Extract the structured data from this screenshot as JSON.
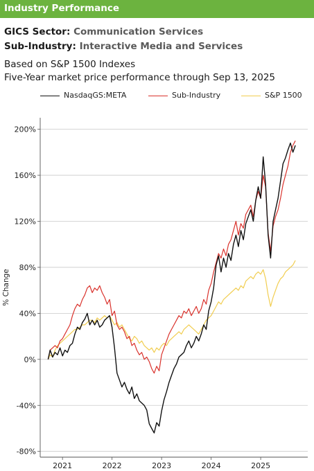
{
  "header": {
    "title": "Industry Performance"
  },
  "sector": {
    "label": "GICS Sector:",
    "value": "Communication Services"
  },
  "sub_industry": {
    "label": "Sub-Industry:",
    "value": "Interactive Media and Services"
  },
  "based_on": "Based on S&P 1500 Indexes",
  "subtitle": "Five-Year market price performance through Sep 13, 2025",
  "colors": {
    "header_bg": "#6cb33f",
    "meta": "#111111",
    "sub_industry": "#d9312b",
    "sp1500": "#f1cd4f"
  },
  "chart_data": {
    "type": "line",
    "ylabel": "% Change",
    "yticks": [
      "200%",
      "160%",
      "120%",
      "80%",
      "40%",
      "0%",
      "-40%",
      "-80%"
    ],
    "ytick_values": [
      200,
      160,
      120,
      80,
      40,
      0,
      -40,
      -80
    ],
    "xticks": [
      "2021",
      "2022",
      "2023",
      "2024",
      "2025"
    ],
    "xtick_values": [
      2021,
      2022,
      2023,
      2024,
      2025
    ],
    "ylim": [
      -85,
      210
    ],
    "xlim": [
      2020.55,
      2025.95
    ],
    "grid": true,
    "legend_position": "top",
    "series": [
      {
        "name": "NasdaqGS:META",
        "color": "#111111",
        "x": [
          2020.71,
          2020.75,
          2020.8,
          2020.85,
          2020.9,
          2020.95,
          2021.0,
          2021.05,
          2021.1,
          2021.15,
          2021.2,
          2021.25,
          2021.3,
          2021.35,
          2021.4,
          2021.45,
          2021.5,
          2021.55,
          2021.6,
          2021.65,
          2021.7,
          2021.75,
          2021.8,
          2021.85,
          2021.9,
          2021.95,
          2022.0,
          2022.05,
          2022.1,
          2022.15,
          2022.2,
          2022.25,
          2022.3,
          2022.35,
          2022.4,
          2022.45,
          2022.5,
          2022.55,
          2022.6,
          2022.65,
          2022.7,
          2022.75,
          2022.8,
          2022.85,
          2022.9,
          2022.95,
          2023.0,
          2023.05,
          2023.1,
          2023.15,
          2023.2,
          2023.25,
          2023.3,
          2023.35,
          2023.4,
          2023.45,
          2023.5,
          2023.55,
          2023.6,
          2023.65,
          2023.7,
          2023.75,
          2023.8,
          2023.85,
          2023.9,
          2023.95,
          2024.0,
          2024.05,
          2024.1,
          2024.15,
          2024.2,
          2024.25,
          2024.3,
          2024.35,
          2024.4,
          2024.45,
          2024.5,
          2024.55,
          2024.6,
          2024.65,
          2024.7,
          2024.75,
          2024.8,
          2024.85,
          2024.9,
          2024.95,
          2025.0,
          2025.05,
          2025.1,
          2025.15,
          2025.2,
          2025.25,
          2025.3,
          2025.35,
          2025.4,
          2025.45,
          2025.5,
          2025.55,
          2025.6,
          2025.65,
          2025.7
        ],
        "values": [
          0,
          8,
          2,
          6,
          4,
          10,
          3,
          8,
          6,
          12,
          14,
          22,
          28,
          26,
          32,
          35,
          40,
          30,
          34,
          30,
          34,
          28,
          30,
          34,
          36,
          38,
          28,
          10,
          -12,
          -18,
          -24,
          -20,
          -26,
          -30,
          -24,
          -34,
          -30,
          -36,
          -38,
          -40,
          -44,
          -56,
          -60,
          -64,
          -55,
          -58,
          -45,
          -35,
          -28,
          -20,
          -14,
          -8,
          -4,
          2,
          4,
          6,
          12,
          16,
          10,
          14,
          20,
          16,
          22,
          30,
          26,
          42,
          50,
          62,
          82,
          90,
          76,
          88,
          80,
          92,
          86,
          100,
          108,
          98,
          112,
          104,
          118,
          124,
          130,
          120,
          138,
          150,
          140,
          176,
          152,
          108,
          88,
          120,
          130,
          140,
          155,
          170,
          175,
          182,
          188,
          180,
          186
        ]
      },
      {
        "name": "Sub-Industry",
        "color": "#d9312b",
        "x": [
          2020.71,
          2020.75,
          2020.8,
          2020.85,
          2020.9,
          2020.95,
          2021.0,
          2021.05,
          2021.1,
          2021.15,
          2021.2,
          2021.25,
          2021.3,
          2021.35,
          2021.4,
          2021.45,
          2021.5,
          2021.55,
          2021.6,
          2021.65,
          2021.7,
          2021.75,
          2021.8,
          2021.85,
          2021.9,
          2021.95,
          2022.0,
          2022.05,
          2022.1,
          2022.15,
          2022.2,
          2022.25,
          2022.3,
          2022.35,
          2022.4,
          2022.45,
          2022.5,
          2022.55,
          2022.6,
          2022.65,
          2022.7,
          2022.75,
          2022.8,
          2022.85,
          2022.9,
          2022.95,
          2023.0,
          2023.05,
          2023.1,
          2023.15,
          2023.2,
          2023.25,
          2023.3,
          2023.35,
          2023.4,
          2023.45,
          2023.5,
          2023.55,
          2023.6,
          2023.65,
          2023.7,
          2023.75,
          2023.8,
          2023.85,
          2023.9,
          2023.95,
          2024.0,
          2024.05,
          2024.1,
          2024.15,
          2024.2,
          2024.25,
          2024.3,
          2024.35,
          2024.4,
          2024.45,
          2024.5,
          2024.55,
          2024.6,
          2024.65,
          2024.7,
          2024.75,
          2024.8,
          2024.85,
          2024.9,
          2024.95,
          2025.0,
          2025.05,
          2025.1,
          2025.15,
          2025.2,
          2025.25,
          2025.3,
          2025.35,
          2025.4,
          2025.45,
          2025.5,
          2025.55,
          2025.6,
          2025.65,
          2025.7
        ],
        "values": [
          0,
          8,
          10,
          12,
          10,
          16,
          18,
          22,
          26,
          30,
          38,
          44,
          48,
          46,
          52,
          56,
          62,
          64,
          58,
          62,
          60,
          64,
          58,
          54,
          48,
          52,
          38,
          42,
          30,
          26,
          28,
          24,
          18,
          20,
          12,
          14,
          8,
          4,
          6,
          0,
          2,
          -2,
          -8,
          -12,
          -6,
          -10,
          4,
          10,
          16,
          22,
          26,
          30,
          34,
          38,
          36,
          42,
          40,
          44,
          38,
          42,
          46,
          40,
          44,
          52,
          48,
          60,
          66,
          76,
          84,
          92,
          88,
          96,
          90,
          100,
          104,
          112,
          120,
          108,
          118,
          114,
          126,
          130,
          134,
          124,
          138,
          146,
          140,
          160,
          150,
          110,
          94,
          116,
          124,
          130,
          140,
          152,
          160,
          168,
          180,
          186,
          190
        ]
      },
      {
        "name": "S&P 1500",
        "color": "#f1cd4f",
        "x": [
          2020.71,
          2020.75,
          2020.8,
          2020.85,
          2020.9,
          2020.95,
          2021.0,
          2021.05,
          2021.1,
          2021.15,
          2021.2,
          2021.25,
          2021.3,
          2021.35,
          2021.4,
          2021.45,
          2021.5,
          2021.55,
          2021.6,
          2021.65,
          2021.7,
          2021.75,
          2021.8,
          2021.85,
          2021.9,
          2021.95,
          2022.0,
          2022.05,
          2022.1,
          2022.15,
          2022.2,
          2022.25,
          2022.3,
          2022.35,
          2022.4,
          2022.45,
          2022.5,
          2022.55,
          2022.6,
          2022.65,
          2022.7,
          2022.75,
          2022.8,
          2022.85,
          2022.9,
          2022.95,
          2023.0,
          2023.05,
          2023.1,
          2023.15,
          2023.2,
          2023.25,
          2023.3,
          2023.35,
          2023.4,
          2023.45,
          2023.5,
          2023.55,
          2023.6,
          2023.65,
          2023.7,
          2023.75,
          2023.8,
          2023.85,
          2023.9,
          2023.95,
          2024.0,
          2024.05,
          2024.1,
          2024.15,
          2024.2,
          2024.25,
          2024.3,
          2024.35,
          2024.4,
          2024.45,
          2024.5,
          2024.55,
          2024.6,
          2024.65,
          2024.7,
          2024.75,
          2024.8,
          2024.85,
          2024.9,
          2024.95,
          2025.0,
          2025.05,
          2025.1,
          2025.15,
          2025.2,
          2025.25,
          2025.3,
          2025.35,
          2025.4,
          2025.45,
          2025.5,
          2025.55,
          2025.6,
          2025.65,
          2025.7
        ],
        "values": [
          0,
          4,
          2,
          8,
          12,
          14,
          16,
          18,
          20,
          22,
          24,
          26,
          26,
          28,
          30,
          30,
          32,
          34,
          34,
          32,
          36,
          34,
          36,
          38,
          36,
          38,
          34,
          30,
          32,
          28,
          30,
          26,
          22,
          18,
          16,
          20,
          18,
          14,
          16,
          12,
          10,
          8,
          10,
          6,
          10,
          8,
          12,
          14,
          12,
          16,
          18,
          20,
          22,
          24,
          22,
          26,
          28,
          30,
          28,
          26,
          24,
          22,
          26,
          30,
          34,
          36,
          38,
          42,
          46,
          50,
          48,
          52,
          54,
          56,
          58,
          60,
          62,
          60,
          64,
          62,
          68,
          70,
          72,
          70,
          74,
          76,
          74,
          78,
          70,
          56,
          46,
          54,
          60,
          66,
          70,
          72,
          76,
          78,
          80,
          82,
          86
        ]
      }
    ]
  }
}
